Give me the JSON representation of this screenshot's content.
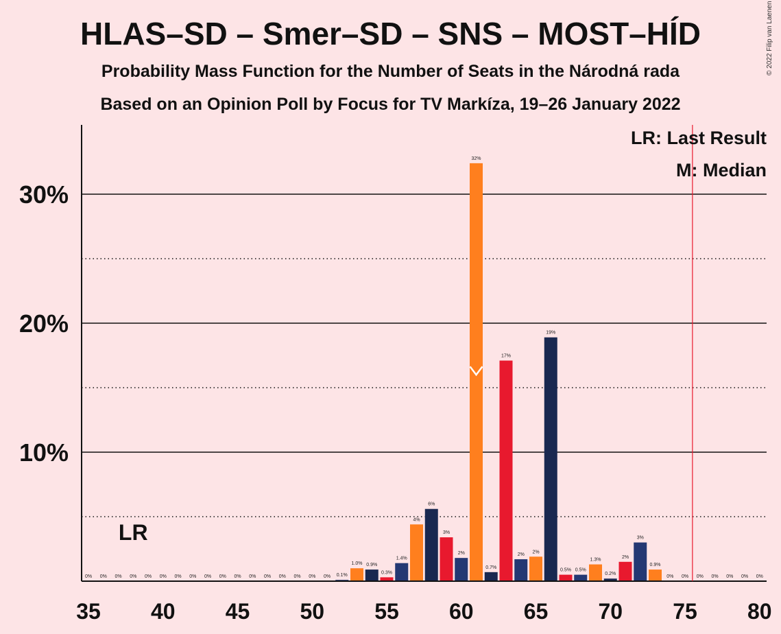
{
  "title": "HLAS–SD – Smer–SD – SNS – MOST–HÍD",
  "subtitle1": "Probability Mass Function for the Number of Seats in the Národná rada",
  "subtitle2": "Based on an Opinion Poll by Focus for TV Markíza, 19–26 January 2022",
  "copyright": "© 2022 Filip van Laenen",
  "chart_data": {
    "type": "bar",
    "xlim": [
      35,
      80
    ],
    "ylim": [
      0,
      35
    ],
    "xticks": [
      35,
      40,
      45,
      50,
      55,
      60,
      65,
      70,
      75,
      80
    ],
    "xtick_labels": [
      "35",
      "40",
      "45",
      "50",
      "55",
      "60",
      "65",
      "70",
      "75",
      "80"
    ],
    "yticks": [
      10,
      20,
      30
    ],
    "ytick_labels": [
      "10%",
      "20%",
      "30%"
    ],
    "minor_gridlines": [
      5,
      15,
      25
    ],
    "colors": [
      "#E8192E",
      "#243873",
      "#FF7F1E",
      "#192850"
    ],
    "bars": [
      {
        "x": 35,
        "value": 0,
        "label": "0%"
      },
      {
        "x": 36,
        "value": 0,
        "label": "0%"
      },
      {
        "x": 37,
        "value": 0,
        "label": "0%"
      },
      {
        "x": 38,
        "value": 0,
        "label": "0%"
      },
      {
        "x": 39,
        "value": 0,
        "label": "0%"
      },
      {
        "x": 40,
        "value": 0,
        "label": "0%"
      },
      {
        "x": 41,
        "value": 0,
        "label": "0%"
      },
      {
        "x": 42,
        "value": 0,
        "label": "0%"
      },
      {
        "x": 43,
        "value": 0,
        "label": "0%"
      },
      {
        "x": 44,
        "value": 0,
        "label": "0%"
      },
      {
        "x": 45,
        "value": 0,
        "label": "0%"
      },
      {
        "x": 46,
        "value": 0,
        "label": "0%"
      },
      {
        "x": 47,
        "value": 0,
        "label": "0%"
      },
      {
        "x": 48,
        "value": 0,
        "label": "0%"
      },
      {
        "x": 49,
        "value": 0,
        "label": "0%"
      },
      {
        "x": 50,
        "value": 0,
        "label": "0%"
      },
      {
        "x": 51,
        "value": 0,
        "label": "0%"
      },
      {
        "x": 52,
        "value": 0.1,
        "label": "0.1%"
      },
      {
        "x": 53,
        "value": 1.0,
        "label": "1.0%"
      },
      {
        "x": 54,
        "value": 0.9,
        "label": "0.9%"
      },
      {
        "x": 55,
        "value": 0.3,
        "label": "0.3%"
      },
      {
        "x": 56,
        "value": 1.4,
        "label": "1.4%"
      },
      {
        "x": 57,
        "value": 4.4,
        "label": "4%"
      },
      {
        "x": 58,
        "value": 5.6,
        "label": "6%"
      },
      {
        "x": 59,
        "value": 3.4,
        "label": "3%"
      },
      {
        "x": 60,
        "value": 1.8,
        "label": "2%"
      },
      {
        "x": 61,
        "value": 32.4,
        "label": "32%"
      },
      {
        "x": 62,
        "value": 0.7,
        "label": "0.7%"
      },
      {
        "x": 63,
        "value": 17.1,
        "label": "17%"
      },
      {
        "x": 64,
        "value": 1.7,
        "label": "2%"
      },
      {
        "x": 65,
        "value": 1.9,
        "label": "2%"
      },
      {
        "x": 66,
        "value": 18.9,
        "label": "19%"
      },
      {
        "x": 67,
        "value": 0.5,
        "label": "0.5%"
      },
      {
        "x": 68,
        "value": 0.5,
        "label": "0.5%"
      },
      {
        "x": 69,
        "value": 1.3,
        "label": "1.3%"
      },
      {
        "x": 70,
        "value": 0.2,
        "label": "0.2%"
      },
      {
        "x": 71,
        "value": 1.5,
        "label": "2%"
      },
      {
        "x": 72,
        "value": 3.0,
        "label": "3%"
      },
      {
        "x": 73,
        "value": 0.9,
        "label": "0.9%"
      },
      {
        "x": 74,
        "value": 0,
        "label": "0%"
      },
      {
        "x": 75,
        "value": 0,
        "label": "0%"
      },
      {
        "x": 76,
        "value": 0,
        "label": "0%"
      },
      {
        "x": 77,
        "value": 0,
        "label": "0%"
      },
      {
        "x": 78,
        "value": 0,
        "label": "0%"
      },
      {
        "x": 79,
        "value": 0,
        "label": "0%"
      },
      {
        "x": 80,
        "value": 0,
        "label": "0%"
      }
    ],
    "last_result": {
      "x": 38,
      "label": "LR"
    },
    "majority_line_x": 75.5,
    "median": {
      "x": 61,
      "value": 16,
      "label": "M"
    },
    "legend": [
      "LR: Last Result",
      "M: Median"
    ]
  }
}
